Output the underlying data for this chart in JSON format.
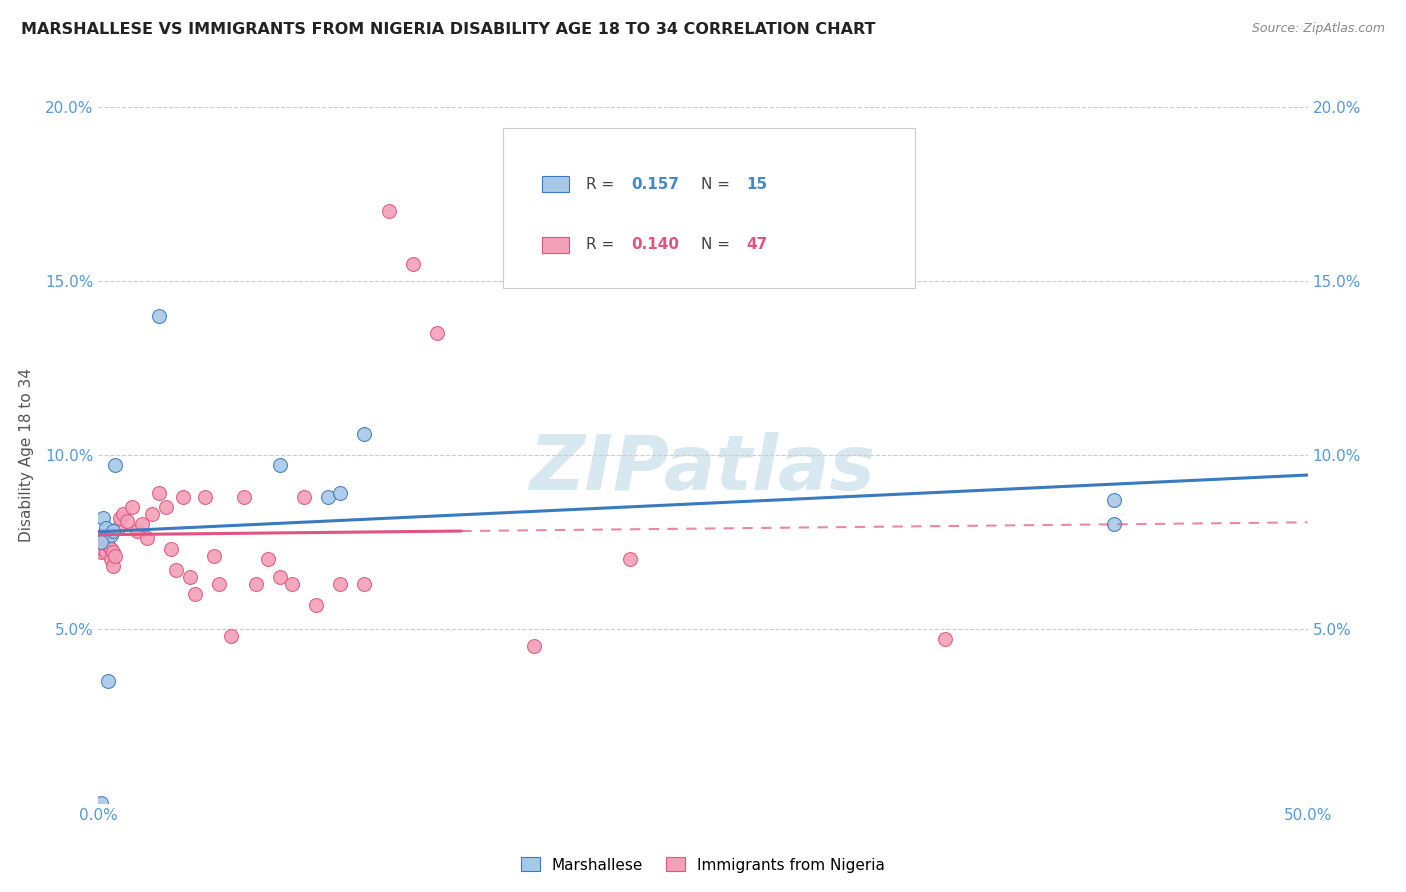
{
  "title": "MARSHALLESE VS IMMIGRANTS FROM NIGERIA DISABILITY AGE 18 TO 34 CORRELATION CHART",
  "source": "Source: ZipAtlas.com",
  "ylabel": "Disability Age 18 to 34",
  "xlim": [
    0.0,
    0.5
  ],
  "ylim": [
    0.0,
    0.2
  ],
  "xticks": [
    0.0,
    0.1,
    0.2,
    0.3,
    0.4,
    0.5
  ],
  "yticks": [
    0.0,
    0.05,
    0.1,
    0.15,
    0.2
  ],
  "xticklabels": [
    "0.0%",
    "",
    "",
    "",
    "",
    "50.0%"
  ],
  "yticklabels": [
    "",
    "5.0%",
    "10.0%",
    "15.0%",
    "20.0%"
  ],
  "legend_labels": [
    "Marshallese",
    "Immigrants from Nigeria"
  ],
  "marshallese_R": "0.157",
  "marshallese_N": "15",
  "nigeria_R": "0.140",
  "nigeria_N": "47",
  "blue_scatter_color": "#a8c8e8",
  "pink_scatter_color": "#f4a0b8",
  "blue_line_color": "#3a7abf",
  "pink_line_color": "#e05580",
  "watermark": "ZIPatlas",
  "marshallese_x": [
    0.001,
    0.002,
    0.003,
    0.004,
    0.005,
    0.006,
    0.007,
    0.025,
    0.075,
    0.095,
    0.1,
    0.11,
    0.42,
    0.42,
    0.001
  ],
  "marshallese_y": [
    0.0,
    0.082,
    0.079,
    0.035,
    0.077,
    0.078,
    0.097,
    0.14,
    0.097,
    0.088,
    0.089,
    0.106,
    0.087,
    0.08,
    0.075
  ],
  "nigeria_x": [
    0.001,
    0.001,
    0.002,
    0.002,
    0.003,
    0.003,
    0.004,
    0.005,
    0.005,
    0.006,
    0.006,
    0.007,
    0.008,
    0.009,
    0.01,
    0.012,
    0.014,
    0.016,
    0.018,
    0.02,
    0.022,
    0.025,
    0.028,
    0.03,
    0.032,
    0.035,
    0.038,
    0.04,
    0.044,
    0.048,
    0.05,
    0.055,
    0.06,
    0.065,
    0.07,
    0.075,
    0.08,
    0.085,
    0.09,
    0.1,
    0.11,
    0.12,
    0.13,
    0.14,
    0.18,
    0.22,
    0.35
  ],
  "nigeria_y": [
    0.075,
    0.072,
    0.077,
    0.073,
    0.076,
    0.072,
    0.074,
    0.073,
    0.07,
    0.072,
    0.068,
    0.071,
    0.079,
    0.082,
    0.083,
    0.081,
    0.085,
    0.078,
    0.08,
    0.076,
    0.083,
    0.089,
    0.085,
    0.073,
    0.067,
    0.088,
    0.065,
    0.06,
    0.088,
    0.071,
    0.063,
    0.048,
    0.088,
    0.063,
    0.07,
    0.065,
    0.063,
    0.088,
    0.057,
    0.063,
    0.063,
    0.17,
    0.155,
    0.135,
    0.045,
    0.07,
    0.047
  ]
}
